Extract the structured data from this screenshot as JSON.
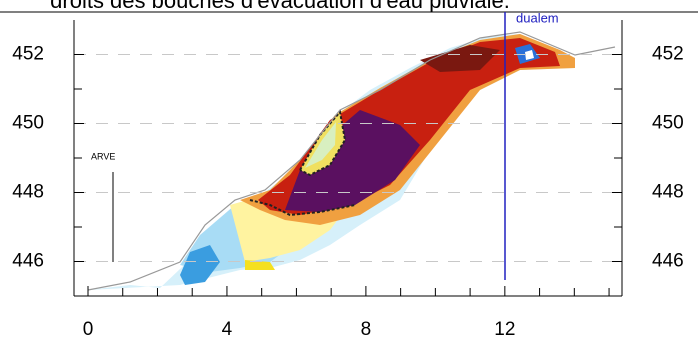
{
  "chart_data": {
    "type": "section",
    "caption": "droits des bouches d'évacuation d'eau pluviale.",
    "xlim": [
      0,
      15.2
    ],
    "xticks": [
      0,
      4,
      8,
      12
    ],
    "xminorticks": [
      1,
      2,
      3,
      5,
      6,
      7,
      9,
      10,
      11,
      13,
      14,
      15
    ],
    "ylim": [
      445,
      453
    ],
    "yticks": [
      446,
      448,
      450,
      452
    ],
    "yminorticks": [
      447,
      449,
      451
    ],
    "grid": true,
    "annotations": [
      {
        "text": "ARVE"
      },
      {
        "text": "dualem"
      }
    ]
  }
}
